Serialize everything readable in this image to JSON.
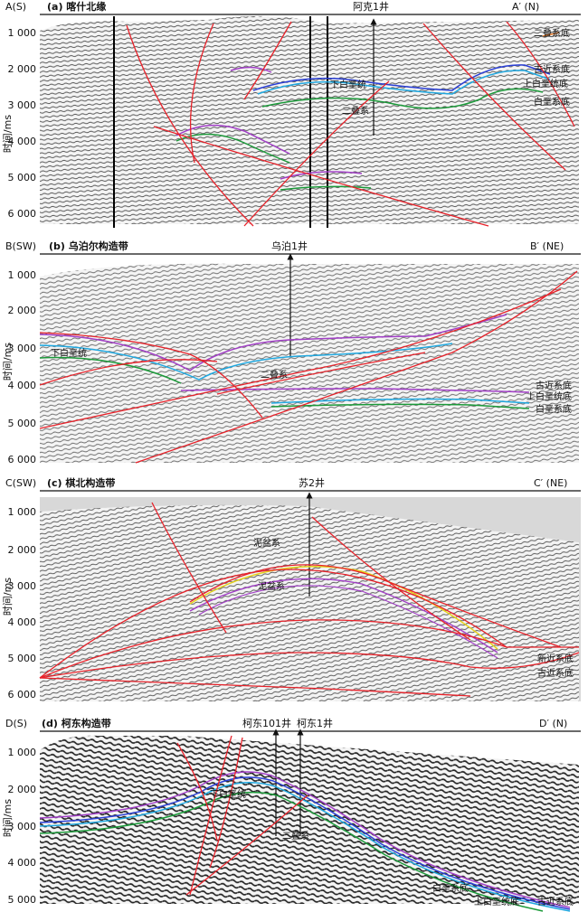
{
  "panels": [
    {
      "id": "a",
      "left_code": "A(S)",
      "title": "(a) 喀什北缘",
      "right_code": "A′ (N)",
      "wells": [
        "阿克1井"
      ],
      "ylabel": "时间/ms",
      "yticks": [
        "1 000",
        "2 000",
        "3 000",
        "4 000",
        "5 000",
        "6 000"
      ],
      "horizon_labels": [
        "二叠系底",
        "古近系底",
        "上白垩统底",
        "白垩系底",
        "下白垩统",
        "二叠系"
      ]
    },
    {
      "id": "b",
      "left_code": "B(SW)",
      "title": "(b) 乌泊尔构造带",
      "right_code": "B′ (NE)",
      "wells": [
        "乌泊1井"
      ],
      "ylabel": "时间/ms",
      "yticks": [
        "1 000",
        "2 000",
        "3 000",
        "4 000",
        "5 000",
        "6 000"
      ],
      "horizon_labels": [
        "下白垩统",
        "二叠系",
        "古近系底",
        "上白垩统底",
        "白垩系底"
      ]
    },
    {
      "id": "c",
      "left_code": "C(SW)",
      "title": "(c) 棋北构造带",
      "right_code": "C′ (NE)",
      "wells": [
        "苏2井"
      ],
      "ylabel": "时间/ms",
      "yticks": [
        "1 000",
        "2 000",
        "3 000",
        "4 000",
        "5 000",
        "6 000"
      ],
      "horizon_labels": [
        "泥盆系",
        "泥盆系",
        "新近系底",
        "古近系底"
      ]
    },
    {
      "id": "d",
      "left_code": "D(S)",
      "title": "(d) 柯东构造带",
      "right_code": "D′ (N)",
      "wells": [
        "柯东101井",
        "柯东1井"
      ],
      "ylabel": "时间/ms",
      "yticks": [
        "1 000",
        "2 000",
        "3 000",
        "4 000",
        "5 000"
      ],
      "horizon_labels": [
        "下白垩统",
        "二叠系",
        "白垩系底",
        "上白垩统底",
        "古近系底"
      ]
    }
  ],
  "colors": {
    "fault": "#e8222a",
    "permian_base": "#e87722",
    "paleogene_base": "#2a3fd6",
    "upper_cretaceous_base": "#1fa8e0",
    "cretaceous_base": "#1c9a3a",
    "lower_cretaceous": "#a23fc7",
    "neogene_base": "#e6d21a",
    "seismic_ink": "#3a3a3a",
    "seismic_bg": "#f2f2f2"
  }
}
